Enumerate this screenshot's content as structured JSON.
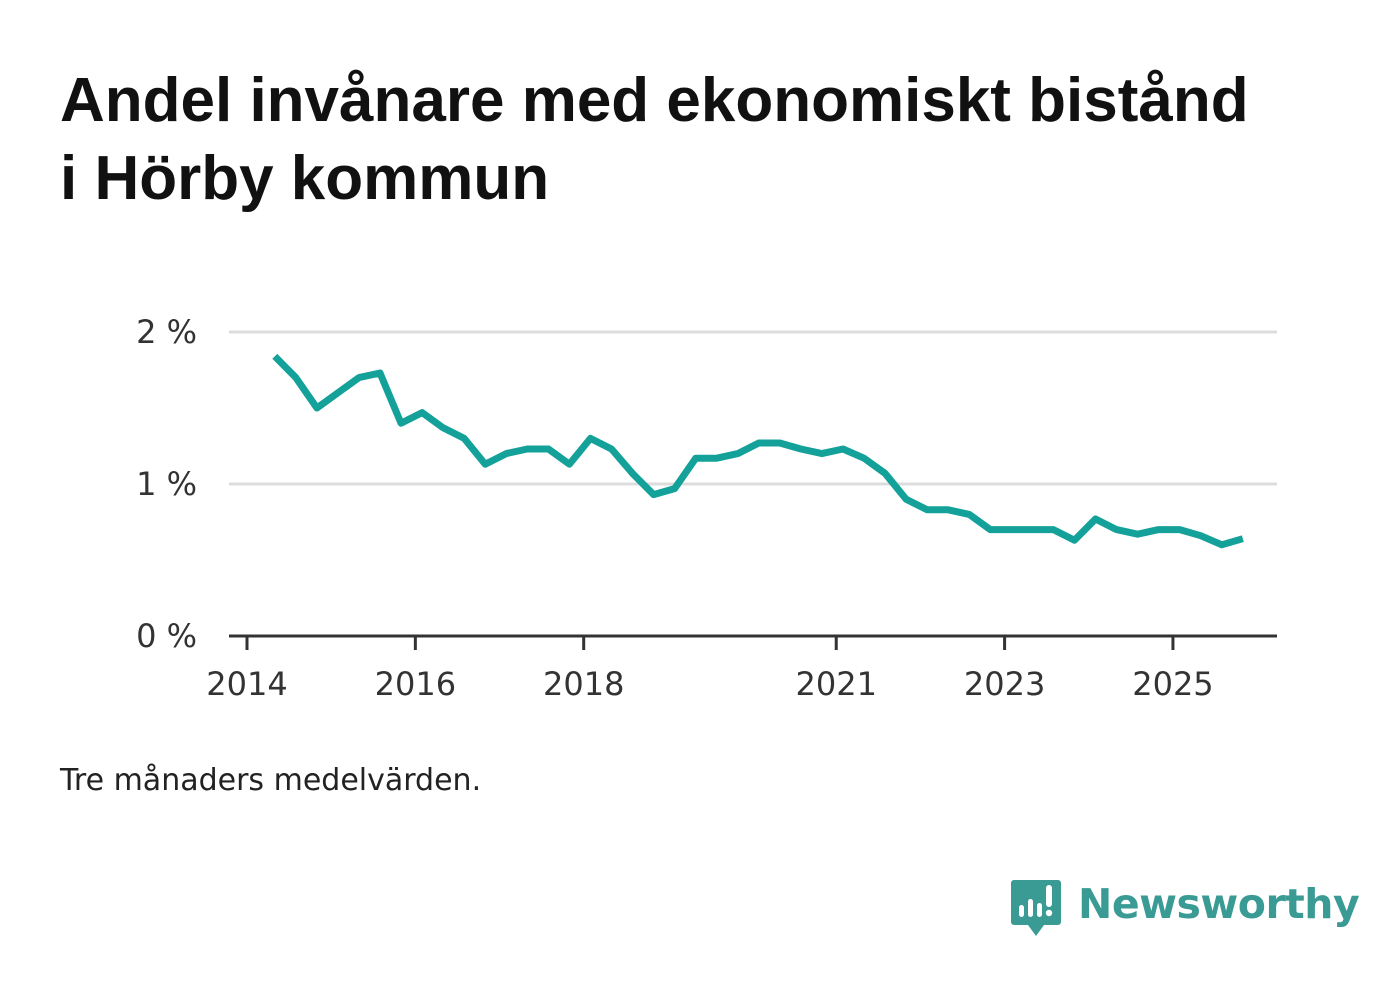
{
  "title": "Andel invånare med ekonomiskt bistånd i Hörby kommun",
  "note": "Tre månaders medelvärden.",
  "brand": {
    "name": "Newsworthy",
    "icon": "newsworthy-logo-icon"
  },
  "colors": {
    "line": "#14a19a",
    "grid": "#dddddd",
    "axis": "#333333",
    "brand": "#3a9a94"
  },
  "chart_data": {
    "type": "line",
    "title": "Andel invånare med ekonomiskt bistånd i Hörby kommun",
    "xlabel": "",
    "ylabel": "",
    "ylim": [
      0,
      2
    ],
    "xlim": [
      2014,
      2026.45
    ],
    "y_ticks": [
      {
        "value": 0,
        "label": "0 %"
      },
      {
        "value": 1,
        "label": "1 %"
      },
      {
        "value": 2,
        "label": "2 %"
      }
    ],
    "x_ticks": [
      {
        "value": 2014,
        "label": "2014"
      },
      {
        "value": 2016,
        "label": "2016"
      },
      {
        "value": 2018,
        "label": "2018"
      },
      {
        "value": 2021,
        "label": "2021"
      },
      {
        "value": 2023,
        "label": "2023"
      },
      {
        "value": 2025,
        "label": "2025"
      }
    ],
    "grid": true,
    "series": [
      {
        "name": "Andel invånare med ekonomiskt bistånd",
        "unit": "%",
        "x": [
          2014.33,
          2014.58,
          2014.83,
          2015.08,
          2015.33,
          2015.58,
          2015.83,
          2016.08,
          2016.33,
          2016.58,
          2016.83,
          2017.08,
          2017.33,
          2017.58,
          2017.83,
          2018.08,
          2018.33,
          2018.58,
          2018.83,
          2019.08,
          2019.33,
          2019.58,
          2019.83,
          2020.08,
          2020.33,
          2020.58,
          2020.83,
          2021.08,
          2021.33,
          2021.58,
          2021.83,
          2022.08,
          2022.33,
          2022.58,
          2022.83,
          2023.08,
          2023.33,
          2023.58,
          2023.83,
          2024.08,
          2024.33,
          2024.58,
          2024.83,
          2025.08,
          2025.33,
          2025.58,
          2025.83
        ],
        "values": [
          1.84,
          1.7,
          1.5,
          1.6,
          1.7,
          1.73,
          1.4,
          1.47,
          1.37,
          1.3,
          1.13,
          1.2,
          1.23,
          1.23,
          1.13,
          1.3,
          1.23,
          1.07,
          0.93,
          0.97,
          1.17,
          1.17,
          1.2,
          1.27,
          1.27,
          1.23,
          1.2,
          1.23,
          1.17,
          1.07,
          0.9,
          0.83,
          0.83,
          0.8,
          0.7,
          0.7,
          0.7,
          0.7,
          0.63,
          0.77,
          0.7,
          0.67,
          0.7,
          0.7,
          0.66,
          0.6,
          0.64
        ]
      }
    ]
  }
}
